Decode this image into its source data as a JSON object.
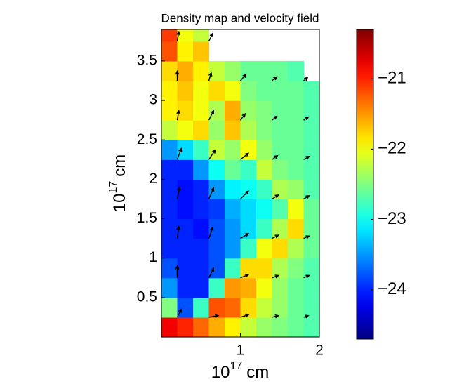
{
  "chart_data": {
    "type": "heatmap",
    "title": "Density map and velocity field",
    "xlabel": {
      "base": "10",
      "exponent": "17",
      "unit": "cm"
    },
    "ylabel": {
      "base": "10",
      "exponent": "17",
      "unit": "cm"
    },
    "colormap": "jet",
    "xlim": [
      0,
      2
    ],
    "ylim": [
      0,
      3.9
    ],
    "xticks": [
      1,
      2
    ],
    "yticks": [
      0.5,
      1,
      1.5,
      2,
      2.5,
      3,
      3.5
    ],
    "clim": [
      -24.7,
      -20.3
    ],
    "cticks": [
      {
        "value": -21,
        "label": "−21"
      },
      {
        "value": -22,
        "label": "−22"
      },
      {
        "value": -23,
        "label": "−23"
      },
      {
        "value": -24,
        "label": "−24"
      }
    ],
    "x": [
      0.1,
      0.3,
      0.5,
      0.7,
      0.9,
      1.1,
      1.3,
      1.5,
      1.7,
      1.9
    ],
    "y": [
      0.125,
      0.375,
      0.625,
      0.875,
      1.125,
      1.375,
      1.625,
      1.875,
      2.125,
      2.375,
      2.625,
      2.875,
      3.125,
      3.375,
      3.625,
      3.875
    ],
    "z": [
      [
        -20.8,
        -21.0,
        -21.3,
        -21.6,
        -21.9,
        -22.2,
        -22.4,
        -22.5,
        -22.6,
        -22.7
      ],
      [
        -22.5,
        -23.8,
        -22.8,
        -21.2,
        -21.3,
        -21.8,
        -22.2,
        -22.4,
        -22.6,
        -22.7
      ],
      [
        -23.5,
        -24.0,
        -24.0,
        -22.8,
        -21.5,
        -21.6,
        -22.0,
        -22.4,
        -22.6,
        -22.7
      ],
      [
        -23.8,
        -24.0,
        -24.0,
        -23.8,
        -22.8,
        -21.8,
        -21.8,
        -22.3,
        -22.5,
        -22.7
      ],
      [
        -24.0,
        -24.0,
        -24.0,
        -23.8,
        -23.5,
        -22.8,
        -22.0,
        -21.8,
        -22.3,
        -22.6
      ],
      [
        -24.0,
        -24.0,
        -24.1,
        -23.8,
        -23.5,
        -23.2,
        -22.8,
        -22.3,
        -21.8,
        -22.6
      ],
      [
        -24.0,
        -24.1,
        -24.0,
        -23.9,
        -23.4,
        -23.2,
        -23.0,
        -22.7,
        -22.0,
        -22.6
      ],
      [
        -24.0,
        -24.1,
        -24.0,
        -23.5,
        -23.1,
        -23.0,
        -22.8,
        -22.3,
        -22.4,
        -22.7
      ],
      [
        -24.0,
        -24.0,
        -23.5,
        -23.0,
        -22.6,
        -22.8,
        -22.2,
        -22.5,
        -22.6,
        -22.7
      ],
      [
        -23.5,
        -23.2,
        -22.8,
        -22.2,
        -22.4,
        -22.0,
        -22.4,
        -22.6,
        -22.6,
        -22.7
      ],
      [
        -22.2,
        -22.0,
        -21.8,
        -22.4,
        -21.7,
        -22.3,
        -22.5,
        -22.6,
        -22.6,
        -22.7
      ],
      [
        -21.9,
        -21.8,
        -22.0,
        -22.3,
        -21.6,
        -22.4,
        -22.5,
        -22.6,
        -22.6,
        -22.7
      ],
      [
        -21.9,
        -21.7,
        -22.0,
        -21.8,
        -22.0,
        -22.5,
        -22.6,
        -22.6,
        -22.6,
        -22.7
      ],
      [
        -21.8,
        -21.6,
        -21.9,
        -22.2,
        -22.4,
        -22.6,
        -22.6,
        -22.6,
        -22.7,
        null
      ],
      [
        -21.2,
        -21.9,
        -21.7,
        null,
        null,
        null,
        null,
        null,
        null,
        null
      ],
      [
        -21.1,
        -22.0,
        -22.2,
        null,
        null,
        null,
        null,
        null,
        null,
        null
      ]
    ],
    "quiver": {
      "x": [
        0.2,
        0.6,
        1.0,
        1.4,
        1.8,
        0.2,
        0.6,
        1.0,
        1.4,
        1.8,
        0.2,
        0.6,
        1.0,
        1.4,
        1.8,
        0.2,
        0.6,
        1.0,
        1.4,
        1.8,
        0.2,
        0.6,
        1.0,
        1.4,
        1.8,
        0.2,
        0.6,
        1.0,
        1.4,
        1.8,
        0.2,
        0.6,
        1.0,
        1.4,
        1.8,
        0.2,
        0.6
      ],
      "y": [
        0.25,
        0.25,
        0.25,
        0.25,
        0.25,
        0.75,
        0.75,
        0.75,
        0.75,
        0.75,
        1.25,
        1.25,
        1.25,
        1.25,
        1.25,
        1.75,
        1.75,
        1.75,
        1.75,
        1.75,
        2.25,
        2.25,
        2.25,
        2.25,
        2.25,
        2.75,
        2.75,
        2.75,
        2.75,
        2.75,
        3.25,
        3.25,
        3.25,
        3.25,
        3.25,
        3.75,
        3.75
      ],
      "u": [
        0.05,
        0.12,
        0.1,
        0.08,
        0.06,
        0.0,
        0.06,
        0.1,
        0.08,
        0.07,
        0.02,
        0.05,
        0.1,
        0.08,
        0.07,
        0.03,
        0.06,
        0.1,
        0.08,
        0.07,
        0.05,
        0.08,
        0.1,
        0.07,
        0.07,
        0.02,
        0.06,
        0.06,
        0.06,
        0.06,
        0.0,
        0.03,
        0.07,
        0.06,
        0.05,
        0.02,
        0.05
      ],
      "v": [
        0.1,
        0.02,
        0.03,
        0.02,
        0.02,
        0.15,
        0.12,
        0.04,
        0.03,
        0.03,
        0.15,
        0.14,
        0.06,
        0.04,
        0.03,
        0.15,
        0.14,
        0.1,
        0.05,
        0.04,
        0.14,
        0.12,
        0.08,
        0.05,
        0.04,
        0.12,
        0.12,
        0.08,
        0.05,
        0.04,
        0.12,
        0.1,
        0.08,
        0.05,
        0.04,
        0.12,
        0.1
      ]
    }
  }
}
